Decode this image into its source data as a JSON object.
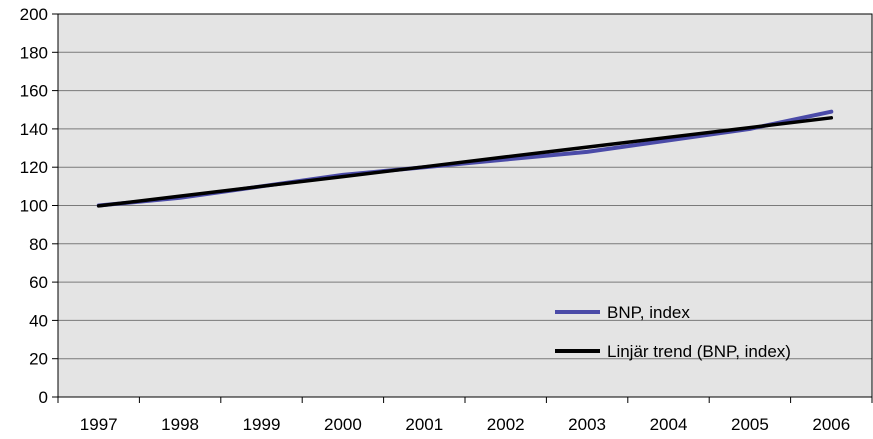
{
  "chart_data": {
    "type": "line",
    "title": "",
    "xlabel": "",
    "ylabel": "",
    "x": [
      "1997",
      "1998",
      "1999",
      "2000",
      "2001",
      "2002",
      "2003",
      "2004",
      "2005",
      "2006"
    ],
    "ylim": [
      0,
      200
    ],
    "yticks": [
      0,
      20,
      40,
      60,
      80,
      100,
      120,
      140,
      160,
      180,
      200
    ],
    "grid": true,
    "legend_position": "bottom-right",
    "background_color": "#e4e4e4",
    "series": [
      {
        "name": "BNP, index",
        "color": "#4b4ba8",
        "values": [
          100,
          104,
          110,
          116,
          120,
          124,
          128,
          134,
          140,
          149
        ]
      },
      {
        "name": "Linjär trend (BNP, index)",
        "color": "#000000",
        "values": [
          99.8,
          104.9,
          110.0,
          115.1,
          120.2,
          125.4,
          130.5,
          135.6,
          140.7,
          145.8
        ]
      }
    ]
  }
}
